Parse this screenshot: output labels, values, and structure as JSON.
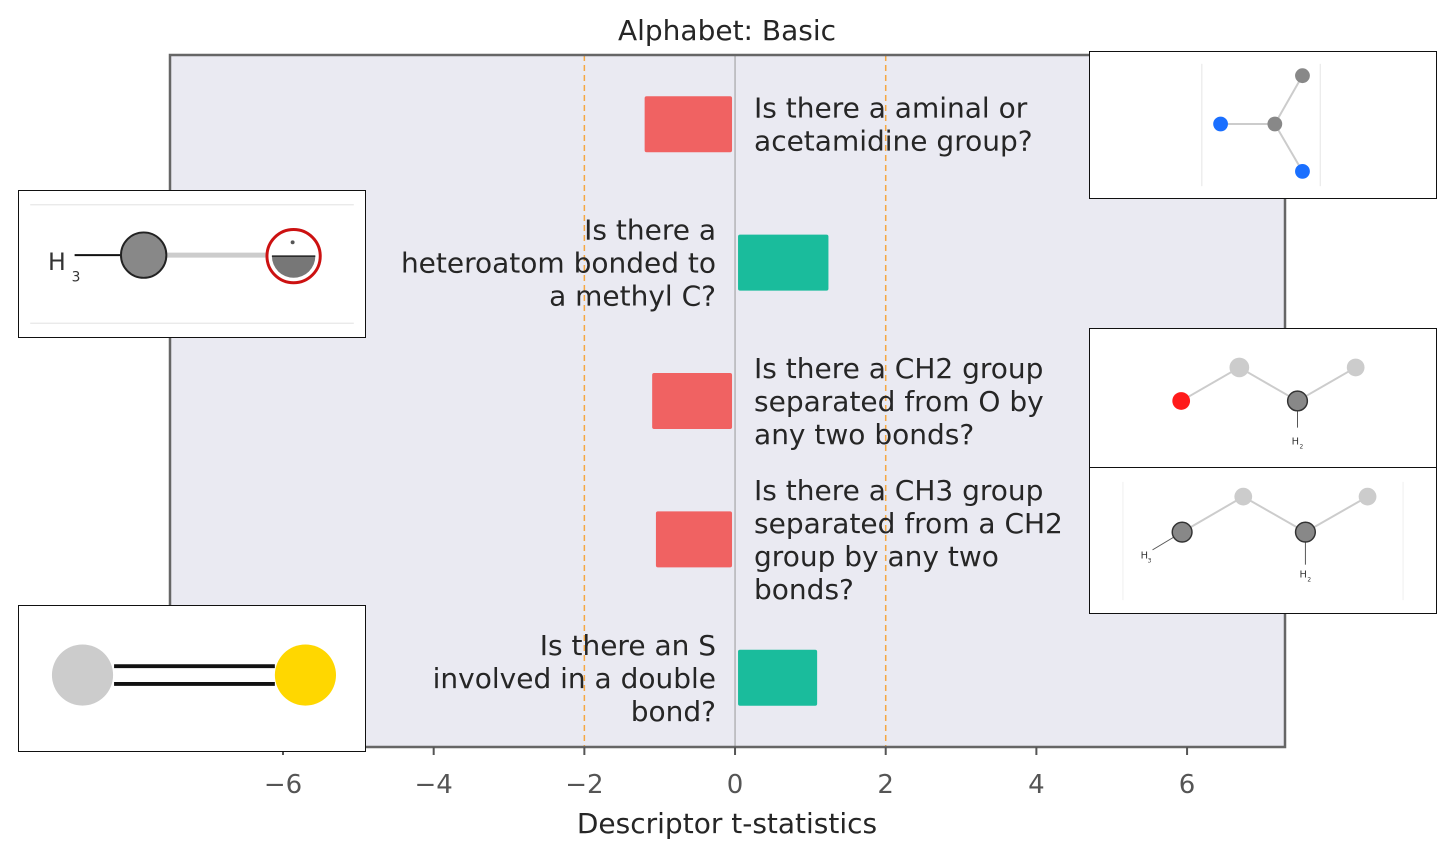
{
  "chart_data": {
    "type": "bar",
    "orientation": "horizontal",
    "title": "Alphabet: Basic",
    "xlabel": "Descriptor t-statistics",
    "ylabel": "",
    "xlim": [
      -7.5,
      7.3
    ],
    "xticks": [
      -6,
      -4,
      -2,
      0,
      2,
      4,
      6
    ],
    "xtick_labels": [
      "−6",
      "−4",
      "−2",
      "0",
      "2",
      "4",
      "6"
    ],
    "threshold_lines": [
      -2,
      2
    ],
    "grid": false,
    "categories": [
      "Is there a aminal or acetamidine group?",
      "Is there a heteroatom bonded to a methyl C?",
      "Is there a CH2 group separated from O by any two bonds?",
      "Is there a CH3 group separated from a CH2 group by any two bonds?",
      "Is there an S involved in a double bond?"
    ],
    "label_lines": [
      [
        "Is there a aminal or",
        "acetamidine group?"
      ],
      [
        "Is there a",
        "heteroatom bonded to",
        "a methyl C?"
      ],
      [
        "Is there a CH2 group",
        "separated from O by",
        "any two bonds?"
      ],
      [
        "Is there a CH3 group",
        "separated from a CH2",
        "group by any two",
        "bonds?"
      ],
      [
        "Is there an S",
        "involved in a double",
        "bond?"
      ]
    ],
    "values": [
      -1.2,
      1.2,
      -1.1,
      -1.05,
      1.05
    ],
    "colors": {
      "negative": "#f06262",
      "positive": "#1abc9c",
      "threshold": "#f5a742",
      "zero_line": "#999999",
      "plot_bg": "#eaeaf2",
      "frame": "#666666"
    }
  },
  "insets": {
    "atom_labels": {
      "h3": "H",
      "h3_sub": "3",
      "h2": "H",
      "h2_sub": "2"
    }
  }
}
